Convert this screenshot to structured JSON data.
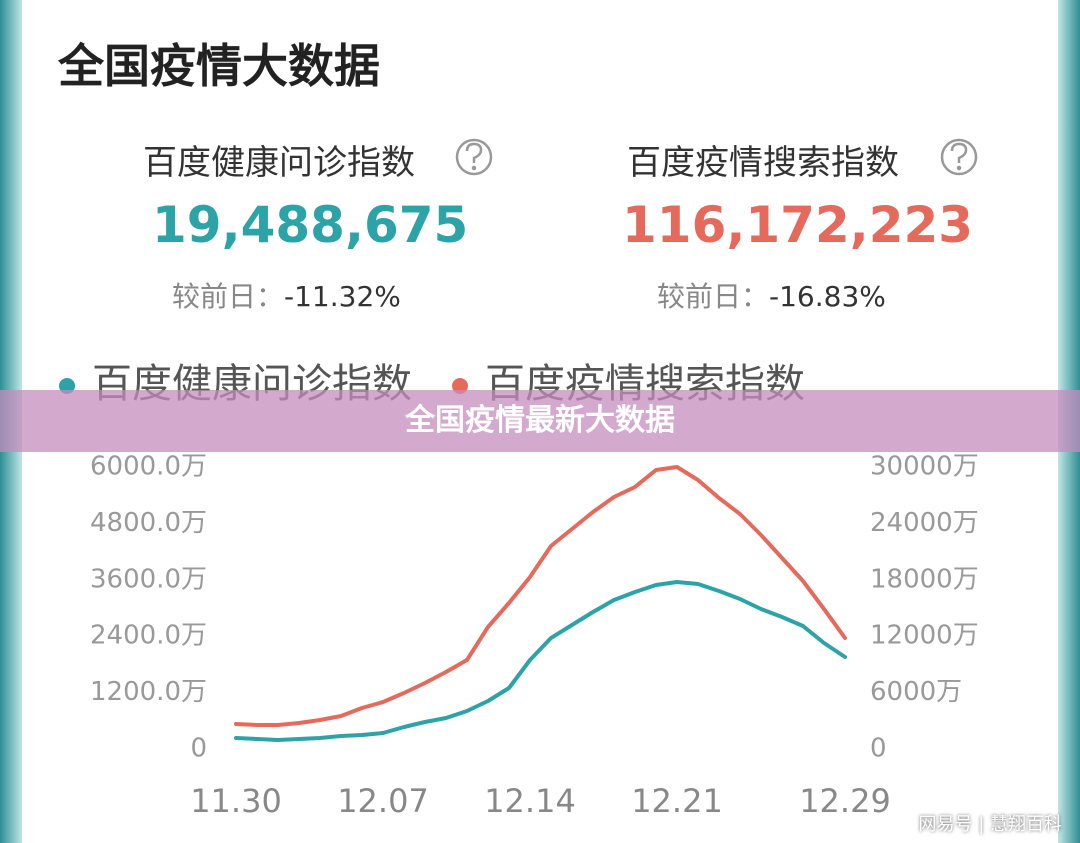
{
  "header": {
    "title": "全国疫情大数据"
  },
  "stats": [
    {
      "label": "百度健康问诊指数",
      "value": "19,488,675",
      "change_label": "较前日：",
      "change": "-11.32%"
    },
    {
      "label": "百度疫情搜索指数",
      "value": "116,172,223",
      "change_label": "较前日：",
      "change": "-16.83%"
    }
  ],
  "chart_data": {
    "type": "line",
    "categories": [
      "11.30",
      null,
      null,
      null,
      null,
      null,
      null,
      "12.07",
      null,
      null,
      null,
      null,
      null,
      null,
      "12.14",
      null,
      null,
      null,
      null,
      null,
      null,
      "12.21",
      null,
      null,
      null,
      null,
      null,
      null,
      null,
      "12.29"
    ],
    "series": [
      {
        "name": "百度健康问诊指数",
        "color": "#2ba3a7",
        "axis": "y",
        "values": [
          234,
          213,
          192,
          213,
          234,
          277,
          298,
          340,
          468,
          575,
          660,
          809,
          1021,
          1298,
          1894,
          2362,
          2639,
          2915,
          3171,
          3341,
          3490,
          3554,
          3511,
          3362,
          3192,
          2979,
          2809,
          2617,
          2256,
          1958
        ]
      },
      {
        "name": "百度疫情搜索指数",
        "color": "#e56a5c",
        "axis": "y2",
        "values": [
          2660,
          2554,
          2554,
          2766,
          3086,
          3511,
          4362,
          5001,
          5958,
          7022,
          8193,
          9470,
          12981,
          15534,
          18301,
          21599,
          23408,
          25217,
          26813,
          27877,
          29686,
          30000,
          28622,
          26706,
          25004,
          22770,
          20322,
          17875,
          14896,
          11810
        ]
      }
    ],
    "ylim": [
      0,
      6000
    ],
    "yticks": [
      0,
      {
        "value": 1200,
        "label": "1200.0万"
      },
      {
        "value": 2400,
        "label": "2400.0万"
      },
      {
        "value": 3600,
        "label": "3600.0万"
      },
      {
        "value": 4800,
        "label": "4800.0万"
      },
      {
        "value": 6000,
        "label": "6000.0万"
      }
    ],
    "y2lim": [
      0,
      30000
    ],
    "y2ticks": [
      0,
      {
        "value": 6000,
        "label": "6000万"
      },
      {
        "value": 12000,
        "label": "12000万"
      },
      {
        "value": 18000,
        "label": "18000万"
      },
      {
        "value": 24000,
        "label": "24000万"
      },
      {
        "value": 30000,
        "label": "30000万"
      }
    ]
  },
  "banner": {
    "text": "全国疫情最新大数据"
  },
  "watermark": {
    "source": "网易号",
    "author": "慧翔百科"
  }
}
